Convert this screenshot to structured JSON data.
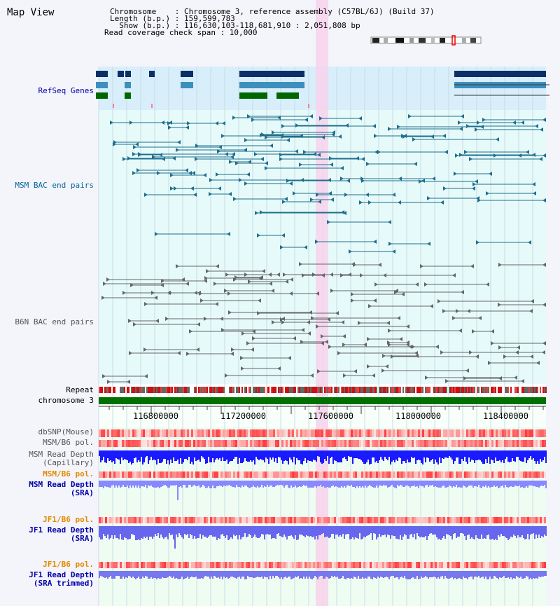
{
  "app": {
    "title": "Map View"
  },
  "info": {
    "line1": "Chromosome    : Chromosome 3, reference assembly (C57BL/6J) (Build 37)",
    "line2": "Length (b.p.) : 159,599,783",
    "line3": "  Show (b.p.) : 116,630,103-118,681,910 : 2,051,808 bp",
    "line4": "Read coverage check span : 10,000"
  },
  "tracks": {
    "refseq": "RefSeq Genes",
    "msm_bac": "MSM BAC end pairs",
    "b6n_bac": "B6N BAC end pairs",
    "repeat": "Repeat",
    "chromosome": "chromosome 3",
    "dbsnp": "dbSNP(Mouse)",
    "msm_b6_pol": "MSM/B6 pol.",
    "msm_depth_cap_1": "MSM Read Depth",
    "msm_depth_cap_2": "(Capillary)",
    "msm_b6_pol_sra": "MSM/B6 pol.",
    "msm_depth_sra_1": "MSM Read Depth",
    "msm_depth_sra_2": "(SRA)",
    "jf1_b6_pol": "JF1/B6 pol.",
    "jf1_depth_sra_1": "JF1 Read Depth",
    "jf1_depth_sra_2": "(SRA)",
    "jf1_b6_pol_trim": "JF1/B6 pol.",
    "jf1_depth_trim_1": "JF1 Read Depth",
    "jf1_depth_trim_2": "(SRA trimmed)"
  },
  "axis": {
    "ticks": [
      "116800000",
      "117200000",
      "117600000",
      "118000000",
      "118400000"
    ]
  },
  "colors": {
    "label_black": "#000000",
    "label_navy": "#0000aa",
    "label_teal": "#006699",
    "label_gray": "#555555",
    "label_orange": "#e08a00",
    "refseq_bg": "#d8eefa",
    "track_bg": "#e6fafa",
    "selection": "#f7d2ec",
    "chromosome": "#007000",
    "depth_blue": "#1a1aff",
    "depth_light": "#8888ff"
  }
}
